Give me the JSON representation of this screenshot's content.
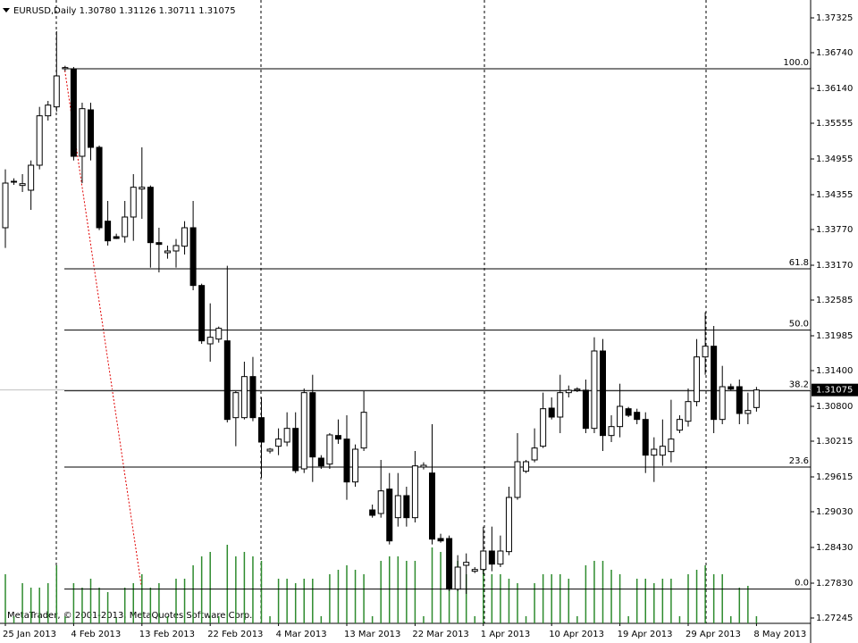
{
  "chart_data": {
    "type": "candlestick",
    "title": "EURUSD,Daily  1.30780 1.31126 1.30711 1.31075",
    "copyright": "MetaTrader, © 2001-2013, MetaQuotes Software Corp.",
    "categories": [
      "25 Jan 2013",
      null,
      null,
      null,
      null,
      null,
      null,
      null,
      "4 Feb 2013",
      null,
      null,
      null,
      null,
      null,
      null,
      null,
      "13 Feb 2013",
      null,
      null,
      null,
      null,
      null,
      null,
      null,
      "22 Feb 2013",
      null,
      null,
      null,
      null,
      null,
      null,
      null,
      "4 Mar 2013",
      null,
      null,
      null,
      null,
      null,
      null,
      null,
      "13 Mar 2013",
      null,
      null,
      null,
      null,
      null,
      null,
      null,
      "22 Mar 2013",
      null,
      null,
      null,
      null,
      null,
      null,
      null,
      "1 Apr 2013",
      null,
      null,
      null,
      null,
      null,
      null,
      null,
      "10 Apr 2013",
      null,
      null,
      null,
      null,
      null,
      null,
      null,
      "19 Apr 2013",
      null,
      null,
      null,
      null,
      null,
      null,
      null,
      "29 Apr 2013",
      null,
      null,
      null,
      null,
      null,
      null,
      null,
      "8 May 2013"
    ],
    "open": [
      1.338,
      1.3458,
      1.3451,
      1.3443,
      1.3485,
      1.3568,
      1.3583,
      1.3647,
      1.3646,
      1.35,
      1.3578,
      1.3515,
      1.3391,
      1.3365,
      1.3365,
      1.3398,
      1.3445,
      1.3448,
      1.3355,
      1.3338,
      1.3341,
      1.3349,
      1.338,
      1.3283,
      1.3185,
      1.3193,
      1.319,
      1.3061,
      1.3061,
      1.313,
      1.3061,
      1.3005,
      1.3013,
      1.302,
      1.3043,
      1.2975,
      1.3103,
      1.2993,
      1.2983,
      1.3031,
      1.3025,
      1.2953,
      1.301,
      1.2906,
      1.29,
      1.2941,
      1.2893,
      1.293,
      1.2893,
      1.2978,
      1.2968,
      1.2858,
      1.2858,
      1.2773,
      1.2813,
      1.2803,
      1.2806,
      1.2837,
      1.2815,
      1.2836,
      1.2927,
      1.2971,
      1.299,
      1.3013,
      1.3077,
      1.3062,
      1.3103,
      1.3107,
      1.3107,
      1.3043,
      1.3173,
      1.3031,
      1.3046,
      1.3076,
      1.307,
      1.3058,
      1.2998,
      1.2998,
      1.3004,
      1.304,
      1.3055,
      1.3088,
      1.3163,
      1.3181,
      1.3058,
      1.3113,
      1.3113,
      1.3068,
      1.3078
    ],
    "high": [
      1.3478,
      1.3463,
      1.347,
      1.3493,
      1.3583,
      1.3593,
      1.371,
      1.3652,
      1.365,
      1.359,
      1.359,
      1.3518,
      1.3425,
      1.337,
      1.3425,
      1.347,
      1.3515,
      1.3451,
      1.338,
      1.335,
      1.3361,
      1.3391,
      1.3425,
      1.3286,
      1.3253,
      1.3214,
      1.3316,
      1.3106,
      1.3155,
      1.3163,
      1.3095,
      1.301,
      1.3043,
      1.307,
      1.307,
      1.311,
      1.3133,
      1.2998,
      1.3035,
      1.3058,
      1.3065,
      1.3016,
      1.3106,
      1.2915,
      1.299,
      1.2968,
      1.2968,
      1.2945,
      1.3005,
      1.2986,
      1.305,
      1.2866,
      1.2863,
      1.283,
      1.2833,
      1.281,
      1.2878,
      1.2878,
      1.2863,
      1.2945,
      1.3035,
      1.299,
      1.3043,
      1.3103,
      1.3095,
      1.3133,
      1.3115,
      1.3112,
      1.3125,
      1.3196,
      1.3193,
      1.3065,
      1.3118,
      1.3079,
      1.3076,
      1.307,
      1.3028,
      1.3058,
      1.3091,
      1.3065,
      1.311,
      1.3193,
      1.3238,
      1.3215,
      1.3148,
      1.3118,
      1.3125,
      1.3103,
      1.31126
    ],
    "low": [
      1.3346,
      1.3452,
      1.344,
      1.341,
      1.3478,
      1.356,
      1.3575,
      1.3643,
      1.3493,
      1.3455,
      1.3493,
      1.3376,
      1.335,
      1.3361,
      1.3355,
      1.3358,
      1.3395,
      1.3313,
      1.3305,
      1.3328,
      1.3313,
      1.3335,
      1.3275,
      1.3185,
      1.3155,
      1.3187,
      1.3053,
      1.3013,
      1.3058,
      1.3055,
      1.296,
      1.3001,
      1.2998,
      1.3013,
      1.2968,
      1.2968,
      1.2953,
      1.2975,
      1.2975,
      1.3017,
      1.2923,
      1.2945,
      1.3005,
      1.2893,
      1.2893,
      1.2848,
      1.2878,
      1.2878,
      1.2885,
      1.2974,
      1.2848,
      1.2851,
      1.277,
      1.277,
      1.2765,
      1.28,
      1.2798,
      1.2803,
      1.281,
      1.283,
      1.2923,
      1.2968,
      1.2986,
      1.301,
      1.3058,
      1.3035,
      1.3095,
      1.3104,
      1.3035,
      1.3035,
      1.3005,
      1.302,
      1.3028,
      1.3062,
      1.305,
      1.2968,
      1.2953,
      1.298,
      1.2986,
      1.3035,
      1.3046,
      1.308,
      1.3133,
      1.3035,
      1.305,
      1.3107,
      1.305,
      1.305,
      1.30711
    ],
    "close": [
      1.3455,
      1.3457,
      1.3454,
      1.3485,
      1.3568,
      1.3586,
      1.3635,
      1.3649,
      1.35,
      1.358,
      1.3515,
      1.338,
      1.3358,
      1.3362,
      1.3398,
      1.3448,
      1.3448,
      1.3355,
      1.3352,
      1.3341,
      1.335,
      1.338,
      1.3283,
      1.319,
      1.3196,
      1.3211,
      1.3058,
      1.3103,
      1.313,
      1.3061,
      1.302,
      1.3008,
      1.3025,
      1.3043,
      1.2972,
      1.3103,
      1.2995,
      1.298,
      1.3032,
      1.3025,
      1.2953,
      1.3008,
      1.307,
      1.2897,
      1.2938,
      1.2854,
      1.293,
      1.2893,
      1.298,
      1.2981,
      1.2857,
      1.2854,
      1.2773,
      1.281,
      1.2818,
      1.2806,
      1.2837,
      1.2815,
      1.2837,
      1.2927,
      1.2987,
      1.2987,
      1.301,
      1.3076,
      1.3062,
      1.3103,
      1.3107,
      1.3109,
      1.3043,
      1.3173,
      1.3031,
      1.3046,
      1.308,
      1.3065,
      1.3058,
      1.2998,
      1.3008,
      1.3013,
      1.3025,
      1.3058,
      1.3088,
      1.3163,
      1.3181,
      1.3058,
      1.3113,
      1.3109,
      1.3068,
      1.3073,
      1.31075
    ],
    "volume": [
      55,
      8,
      45,
      40,
      40,
      45,
      65,
      8,
      45,
      40,
      50,
      40,
      35,
      6,
      40,
      45,
      55,
      40,
      45,
      8,
      50,
      50,
      65,
      75,
      80,
      8,
      88,
      75,
      80,
      75,
      70,
      8,
      50,
      50,
      45,
      50,
      50,
      8,
      55,
      60,
      65,
      60,
      55,
      8,
      70,
      75,
      75,
      70,
      70,
      8,
      85,
      80,
      80,
      70,
      55,
      8,
      60,
      55,
      55,
      50,
      45,
      8,
      45,
      55,
      55,
      55,
      50,
      8,
      65,
      70,
      70,
      60,
      55,
      8,
      50,
      50,
      45,
      50,
      50,
      8,
      55,
      60,
      65,
      55,
      55,
      8,
      40,
      42,
      8
    ],
    "bull_color": "#ffffff",
    "bear_color": "#000000",
    "volume_color": "#2e8b2e",
    "ylim": [
      1.27155,
      1.37625
    ],
    "yticks": [
      1.37325,
      {
        "value": 1.3674,
        "label": "1.36740"
      },
      {
        "value": 1.3614,
        "label": "1.36140"
      },
      1.35555,
      1.34955,
      1.34355,
      {
        "value": 1.3377,
        "label": "1.33770"
      },
      {
        "value": 1.3317,
        "label": "1.33170"
      },
      1.32585,
      1.31985,
      {
        "value": 1.314,
        "label": "1.31400"
      },
      {
        "value": 1.308,
        "label": "1.30800"
      },
      1.30215,
      1.29615,
      {
        "value": 1.2903,
        "label": "1.29030"
      },
      {
        "value": 1.2843,
        "label": "1.28430"
      },
      {
        "value": 1.2783,
        "label": "1.27830"
      },
      1.27245
    ],
    "fibonacci": [
      {
        "label": "100.0",
        "price": 1.3647
      },
      {
        "label": "61.8",
        "price": 1.3311
      },
      {
        "label": "50.0",
        "price": 1.3208
      },
      {
        "label": "38.2",
        "price": 1.3106
      },
      {
        "label": "23.6",
        "price": 1.2978
      },
      {
        "label": "0.0",
        "price": 1.2773
      }
    ]
  }
}
